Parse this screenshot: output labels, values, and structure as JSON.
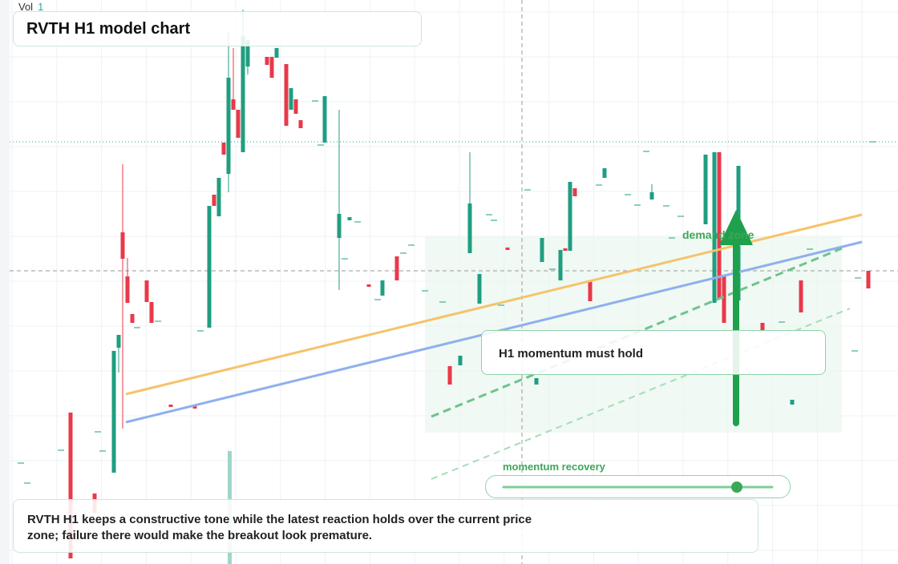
{
  "header": {
    "vol_label": "Vol",
    "vol_value": "1",
    "title": "RVTH H1 model chart"
  },
  "annotations": {
    "zone": "demand zone",
    "callout": "H1 momentum must hold",
    "slider_label": "momentum recovery"
  },
  "note": "RVTH H1 keeps a constructive tone while the latest reaction holds over the current price zone; failure there would make the breakout look premature."
}
